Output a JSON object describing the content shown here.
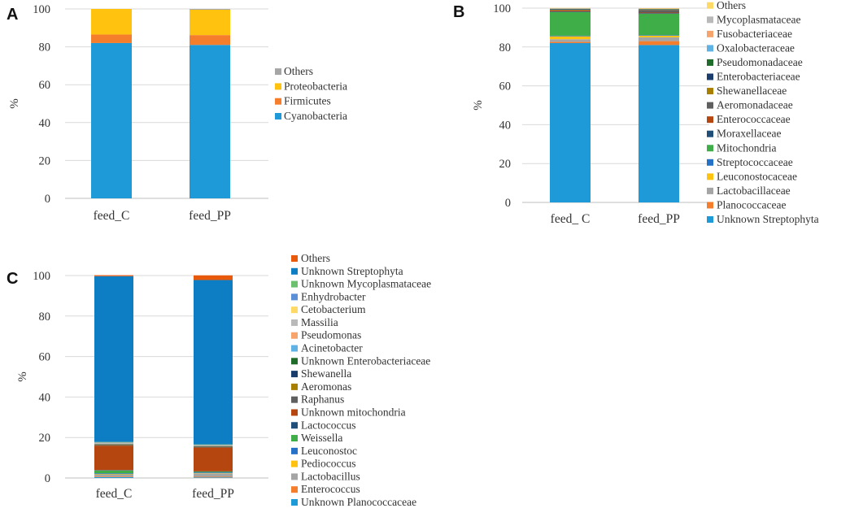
{
  "chart_data": [
    {
      "panel": "A",
      "type": "bar",
      "stacked": true,
      "ylabel": "%",
      "ylim": [
        0,
        100
      ],
      "yticks": [
        0,
        20,
        40,
        60,
        80,
        100
      ],
      "categories": [
        "feed_C",
        "feed_PP"
      ],
      "series": [
        {
          "name": "Cyanobacteria",
          "color": "#1f9ad9",
          "values": [
            82,
            81
          ]
        },
        {
          "name": "Firmicutes",
          "color": "#f57e2d",
          "values": [
            4.5,
            5.2
          ]
        },
        {
          "name": "Proteobacteria",
          "color": "#ffc20e",
          "values": [
            13.5,
            13.4
          ]
        },
        {
          "name": "Others",
          "color": "#a5a5a5",
          "values": [
            0,
            0.4
          ]
        }
      ]
    },
    {
      "panel": "B",
      "type": "bar",
      "stacked": true,
      "ylabel": "%",
      "ylim": [
        0,
        100
      ],
      "yticks": [
        0,
        20,
        40,
        60,
        80,
        100
      ],
      "categories": [
        "feed_ C",
        "feed_PP"
      ],
      "series": [
        {
          "name": "Unknown Streptophyta",
          "color": "#1f9ad9",
          "values": [
            82,
            81
          ]
        },
        {
          "name": "Planococcaceae",
          "color": "#f57e2d",
          "values": [
            0.6,
            2.0
          ]
        },
        {
          "name": "Lactobacillaceae",
          "color": "#a5a5a5",
          "values": [
            1.4,
            2.0
          ]
        },
        {
          "name": "Leuconostocaceae",
          "color": "#ffc20e",
          "values": [
            1.5,
            0.8
          ]
        },
        {
          "name": "Streptococcaceae",
          "color": "#2471c7",
          "values": [
            0.3,
            0.3
          ]
        },
        {
          "name": "Mitochondria",
          "color": "#3fae49",
          "values": [
            12.2,
            11.0
          ]
        },
        {
          "name": "Moraxellaceae",
          "color": "#1f4e79",
          "values": [
            0.3,
            0.3
          ]
        },
        {
          "name": "Enterococcaceae",
          "color": "#b5460f",
          "values": [
            0.5,
            0.3
          ]
        },
        {
          "name": "Aeromonadaceae",
          "color": "#5f5f5f",
          "values": [
            0.2,
            1.4
          ]
        },
        {
          "name": "Shewanellaceae",
          "color": "#a87f00",
          "values": [
            0.2,
            0.2
          ]
        },
        {
          "name": "Enterobacteriaceae",
          "color": "#1b3d6e",
          "values": [
            0.3,
            0.2
          ]
        },
        {
          "name": "Pseudomonadaceae",
          "color": "#1e6b2a",
          "values": [
            0.2,
            0.1
          ]
        },
        {
          "name": "Oxalobacteraceae",
          "color": "#5fb3e4",
          "values": [
            0.1,
            0.1
          ]
        },
        {
          "name": "Fusobacteriaceae",
          "color": "#f7a46c",
          "values": [
            0.1,
            0.1
          ]
        },
        {
          "name": "Mycoplasmataceae",
          "color": "#b9b9b9",
          "values": [
            0.1,
            0.1
          ]
        },
        {
          "name": "Others",
          "color": "#ffd966",
          "values": [
            0.1,
            0.1
          ]
        }
      ]
    },
    {
      "panel": "C",
      "type": "bar",
      "stacked": true,
      "ylabel": "%",
      "ylim": [
        0,
        100
      ],
      "yticks": [
        0,
        20,
        40,
        60,
        80,
        100
      ],
      "categories": [
        "feed_C",
        "feed_PP"
      ],
      "series": [
        {
          "name": "Unknown Planococcaceae",
          "color": "#1f9ad9",
          "values": [
            0.4,
            0.3
          ]
        },
        {
          "name": "Enterococcus",
          "color": "#f57e2d",
          "values": [
            0.3,
            0.3
          ]
        },
        {
          "name": "Lactobacillus",
          "color": "#a5a5a5",
          "values": [
            0.9,
            1.7
          ]
        },
        {
          "name": "Pediococcus",
          "color": "#ffc20e",
          "values": [
            0.3,
            0.2
          ]
        },
        {
          "name": "Leuconostoc",
          "color": "#2471c7",
          "values": [
            0.4,
            0.3
          ]
        },
        {
          "name": "Weissella",
          "color": "#3fae49",
          "values": [
            1.4,
            0.4
          ]
        },
        {
          "name": "Lactococcus",
          "color": "#1f4e79",
          "values": [
            0.2,
            0.1
          ]
        },
        {
          "name": "Unknown mitochondria",
          "color": "#b5460f",
          "values": [
            12.1,
            11.8
          ]
        },
        {
          "name": "Raphanus",
          "color": "#5f5f5f",
          "values": [
            0.3,
            0.3
          ]
        },
        {
          "name": "Aeromonas",
          "color": "#a87f00",
          "values": [
            0.2,
            0.2
          ]
        },
        {
          "name": "Shewanella",
          "color": "#1b3d6e",
          "values": [
            0.1,
            0.1
          ]
        },
        {
          "name": "Unknown Enterobacteriaceae",
          "color": "#1e6b2a",
          "values": [
            0.1,
            0.1
          ]
        },
        {
          "name": "Acinetobacter",
          "color": "#5fb3e4",
          "values": [
            0.1,
            0.1
          ]
        },
        {
          "name": "Pseudomonas",
          "color": "#f7a46c",
          "values": [
            0.1,
            0.1
          ]
        },
        {
          "name": "Massilia",
          "color": "#b9b9b9",
          "values": [
            0.6,
            0.3
          ]
        },
        {
          "name": "Cetobacterium",
          "color": "#ffd966",
          "values": [
            0.1,
            0.1
          ]
        },
        {
          "name": "Enhydrobacter",
          "color": "#5b8fd6",
          "values": [
            0.1,
            0.1
          ]
        },
        {
          "name": "Unknown Mycoplasmataceae",
          "color": "#6cc06f",
          "values": [
            0.1,
            0.1
          ]
        },
        {
          "name": "Unknown Streptophyta",
          "color": "#0d7dc4",
          "values": [
            81.9,
            81.2
          ]
        },
        {
          "name": "Others",
          "color": "#e8590c",
          "values": [
            0.5,
            2.3
          ]
        }
      ]
    }
  ]
}
